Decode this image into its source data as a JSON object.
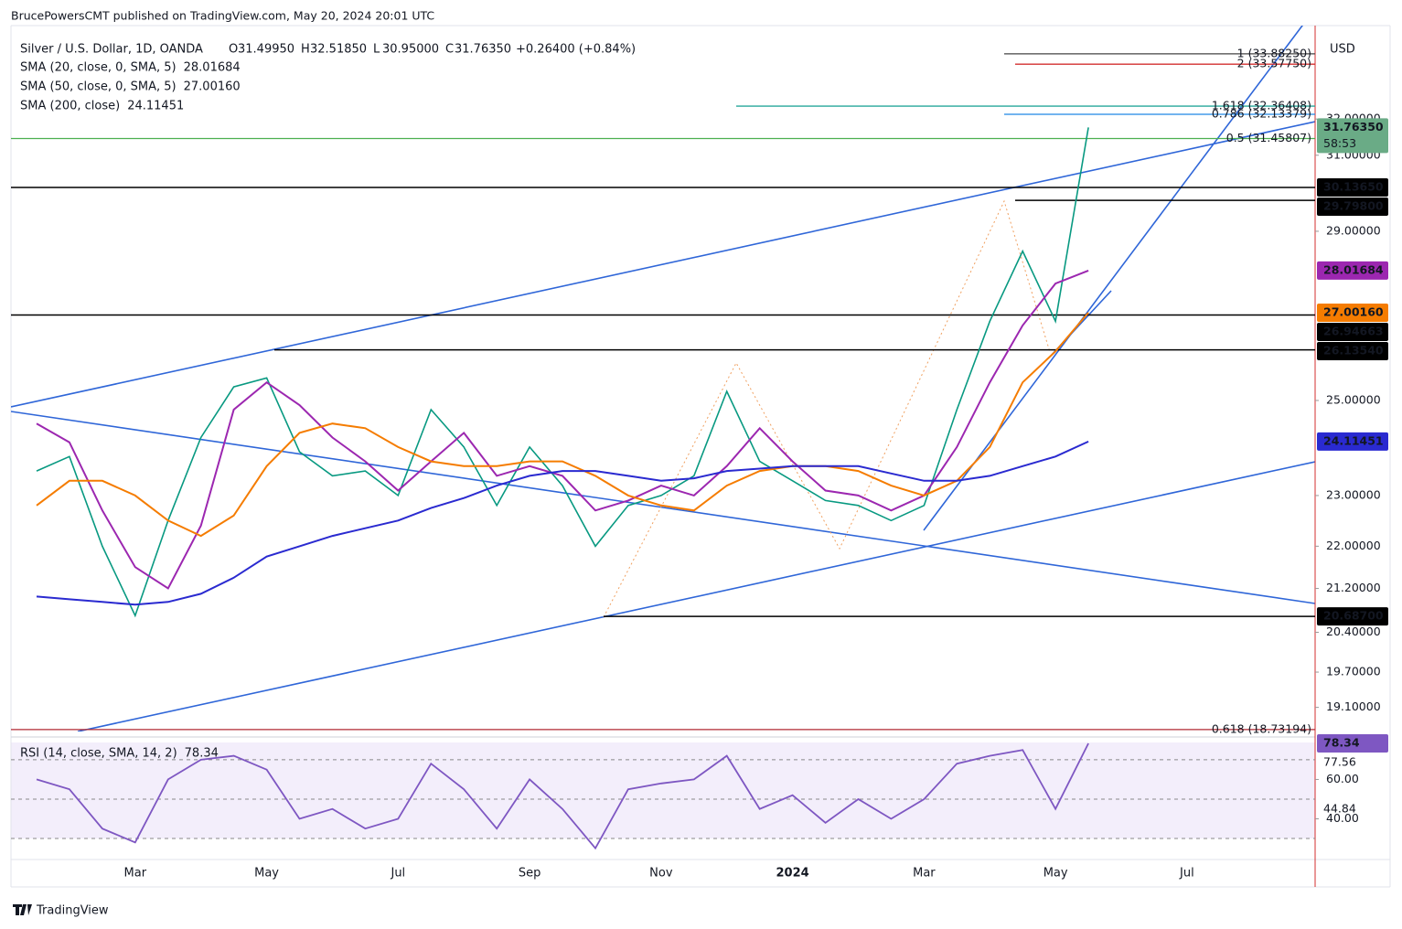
{
  "header": {
    "text": "BrucePowersCMT published on TradingView.com, May 20, 2024 20:01 UTC"
  },
  "footer": {
    "brand": "TradingView"
  },
  "currency": "USD",
  "chart_data": [
    {
      "type": "line",
      "title": "Silver / U.S. Dollar, 1D, OANDA",
      "ohlc": [
        {
          "label": "O",
          "value": "31.49950"
        },
        {
          "label": "H",
          "value": "32.51850"
        },
        {
          "label": "L",
          "value": "30.95000"
        },
        {
          "label": "C",
          "value": "31.76350"
        }
      ],
      "change": "+0.26400 (+0.84%)",
      "categories": [
        null,
        null,
        null,
        "Mar",
        null,
        null,
        null,
        "May",
        null,
        null,
        null,
        "Jul",
        null,
        null,
        null,
        "Sep",
        null,
        null,
        null,
        "Nov",
        null,
        null,
        null,
        "2024",
        null,
        null,
        null,
        "Mar",
        null,
        null,
        null,
        "May",
        null,
        null,
        null,
        "Jul"
      ],
      "values": [
        23.5,
        23.8,
        22.0,
        20.7,
        22.5,
        24.2,
        25.3,
        25.5,
        23.9,
        23.4,
        23.5,
        23.0,
        24.8,
        24.0,
        22.8,
        24.0,
        23.2,
        22.0,
        22.8,
        23.0,
        23.4,
        25.2,
        23.7,
        23.3,
        22.9,
        22.8,
        22.5,
        22.8,
        24.8,
        26.8,
        28.5,
        26.8,
        31.7635,
        null,
        null,
        null
      ],
      "color": "#089981",
      "log_scale": true,
      "ylim": [
        18.7,
        34.4
      ],
      "yticks": [
        {
          "value": 32,
          "label": "32.00000"
        },
        {
          "value": 31,
          "label": "31.00000"
        },
        {
          "value": 29,
          "label": "29.00000"
        },
        {
          "value": 25,
          "label": "25.00000"
        },
        {
          "value": 23,
          "label": "23.00000"
        },
        {
          "value": 22,
          "label": "22.00000"
        },
        {
          "value": 21.2,
          "label": "21.20000"
        },
        {
          "value": 20.4,
          "label": "20.40000"
        },
        {
          "value": 19.7,
          "label": "19.70000"
        },
        {
          "value": 19.1,
          "label": "19.10000"
        }
      ],
      "last_price": {
        "value": 31.7635,
        "label": "31.76350",
        "countdown": "58:53",
        "color": "#6aab86"
      },
      "series": [
        {
          "name": "SMA (20, close, 0, SMA, 5)",
          "color": "#9c27b0",
          "last": {
            "value": 28.01684,
            "label": "28.01684"
          },
          "values": [
            24.5,
            24.1,
            22.7,
            21.6,
            21.2,
            22.4,
            24.8,
            25.4,
            24.9,
            24.2,
            23.7,
            23.1,
            23.7,
            24.3,
            23.4,
            23.6,
            23.4,
            22.7,
            22.9,
            23.2,
            23.0,
            23.6,
            24.4,
            23.7,
            23.1,
            23.0,
            22.7,
            23.0,
            24.0,
            25.4,
            26.7,
            27.7,
            28.01684,
            null,
            null,
            null
          ]
        },
        {
          "name": "SMA (50, close, 0, SMA, 5)",
          "color": "#f57c00",
          "last": {
            "value": 27.0016,
            "label": "27.00160"
          },
          "values": [
            22.8,
            23.3,
            23.3,
            23.0,
            22.5,
            22.2,
            22.6,
            23.6,
            24.3,
            24.5,
            24.4,
            24.0,
            23.7,
            23.6,
            23.6,
            23.7,
            23.7,
            23.4,
            23.0,
            22.8,
            22.7,
            23.2,
            23.5,
            23.6,
            23.6,
            23.5,
            23.2,
            23.0,
            23.3,
            24.0,
            25.4,
            26.1,
            27.0016,
            null,
            null,
            null
          ]
        },
        {
          "name": "SMA (200, close)",
          "color": "#2a2ad0",
          "last": {
            "value": 24.11451,
            "label": "24.11451"
          },
          "values": [
            21.05,
            21.0,
            20.95,
            20.9,
            20.95,
            21.1,
            21.4,
            21.8,
            22.0,
            22.2,
            22.35,
            22.5,
            22.75,
            22.95,
            23.2,
            23.4,
            23.5,
            23.5,
            23.4,
            23.3,
            23.35,
            23.5,
            23.55,
            23.6,
            23.6,
            23.6,
            23.45,
            23.3,
            23.3,
            23.4,
            23.6,
            23.8,
            24.11451,
            null,
            null,
            null
          ]
        }
      ],
      "levels": [
        {
          "value": 30.1365,
          "label": "30.13650"
        },
        {
          "value": 29.798,
          "label": "29.79800"
        },
        {
          "value": 26.94663,
          "label": "26.94663"
        },
        {
          "value": 26.1354,
          "label": "26.13540"
        },
        {
          "value": 20.687,
          "label": "20.68700"
        }
      ],
      "fib_levels": [
        {
          "value": 31.45807,
          "label": "0.5 (31.45807)",
          "color": "#4caf50"
        },
        {
          "value": 18.73194,
          "label": "0.618 (18.73194)",
          "color": "#b22833"
        },
        {
          "value": 33.5775,
          "label": "2 (33.57750)",
          "color": "#d32f2f"
        },
        {
          "value": 33.8825,
          "label": "1 (33.88250)",
          "color": "#444444"
        },
        {
          "value": 32.36408,
          "label": "1.618 (32.36408)",
          "color": "#26a69a"
        },
        {
          "value": 32.13379,
          "label": "0.786 (32.13379)",
          "color": "#1e88e5"
        }
      ]
    },
    {
      "type": "line",
      "title": "RSI (14, close, SMA, 14, 2)",
      "values": [
        60,
        55,
        35,
        28,
        60,
        70,
        72,
        65,
        40,
        45,
        35,
        40,
        68,
        55,
        35,
        60,
        45,
        25,
        55,
        58,
        60,
        72,
        45,
        52,
        38,
        50,
        40,
        50,
        68,
        72,
        75,
        45,
        78.34,
        null,
        null,
        null
      ],
      "color": "#7e57c2",
      "ylim": [
        20.7,
        78.8
      ],
      "yticks": [
        {
          "value": 60,
          "label": "60.00"
        },
        {
          "value": 40,
          "label": "40.00"
        }
      ],
      "bands": [
        70,
        50,
        30
      ],
      "badges": [
        {
          "value": 78.34,
          "label": "78.34",
          "color": "#7e57c2"
        },
        {
          "value": 77.56,
          "label": "77.56"
        },
        {
          "value": 44.84,
          "label": "44.84"
        }
      ]
    }
  ]
}
